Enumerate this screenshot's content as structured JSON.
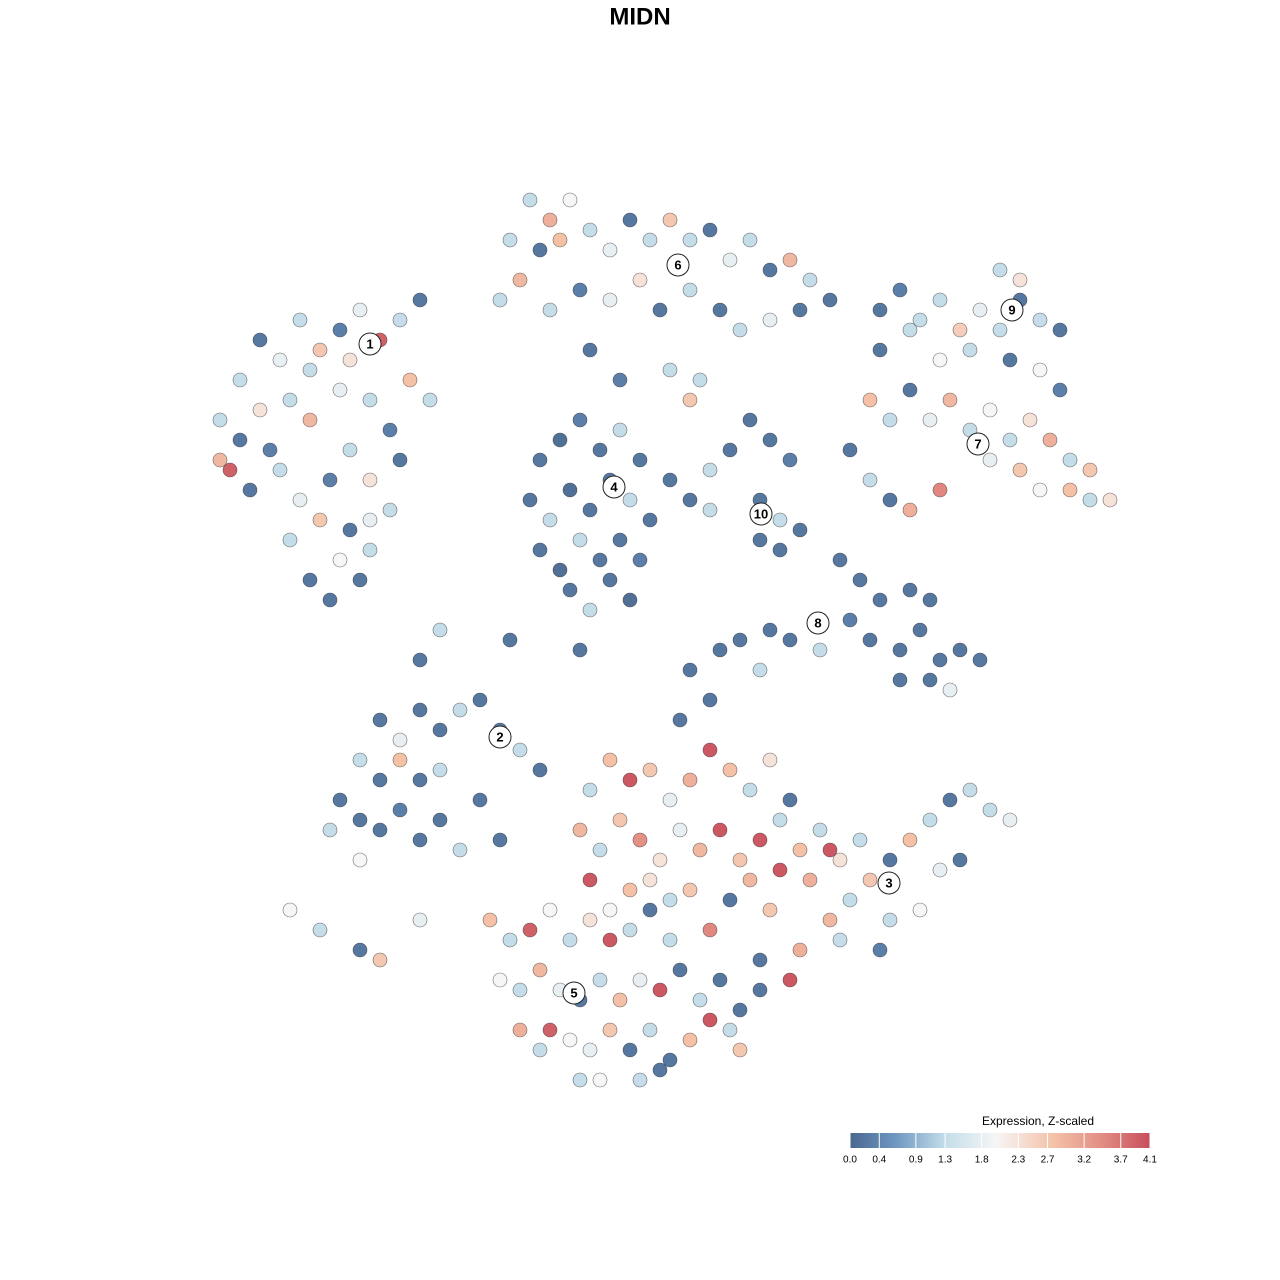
{
  "chart_data": {
    "type": "scatter",
    "title": "MIDN",
    "xlim": [
      -50,
      50
    ],
    "ylim": [
      -50,
      50
    ],
    "points": [
      [
        -40,
        26,
        1.3
      ],
      [
        -38,
        30,
        0.2
      ],
      [
        -36,
        28,
        1.8
      ],
      [
        -34,
        32,
        1.3
      ],
      [
        -32,
        29,
        2.7
      ],
      [
        -30,
        31,
        0.3
      ],
      [
        -28,
        33,
        1.8
      ],
      [
        -26,
        30,
        3.9
      ],
      [
        -24,
        32,
        1.3
      ],
      [
        -22,
        34,
        0.2
      ],
      [
        -42,
        22,
        1.3
      ],
      [
        -40,
        20,
        0.2
      ],
      [
        -38,
        23,
        2.3
      ],
      [
        -35,
        24,
        1.3
      ],
      [
        -33,
        22,
        2.9
      ],
      [
        -30,
        25,
        1.8
      ],
      [
        -27,
        24,
        1.3
      ],
      [
        -25,
        21,
        0.3
      ],
      [
        -23,
        26,
        2.8
      ],
      [
        -21,
        24,
        1.3
      ],
      [
        -42,
        18,
        2.9
      ],
      [
        -39,
        15,
        0.2
      ],
      [
        -36,
        17,
        1.3
      ],
      [
        -34,
        14,
        1.8
      ],
      [
        -31,
        16,
        0.3
      ],
      [
        -29,
        19,
        1.3
      ],
      [
        -27,
        16,
        2.3
      ],
      [
        -24,
        18,
        0.2
      ],
      [
        -41,
        17,
        3.9
      ],
      [
        -35,
        10,
        1.3
      ],
      [
        -32,
        12,
        2.7
      ],
      [
        -29,
        11,
        0.2
      ],
      [
        -27,
        12,
        1.8
      ],
      [
        -25,
        13,
        1.3
      ],
      [
        -33,
        6,
        0.2
      ],
      [
        -30,
        8,
        2.0
      ],
      [
        -27,
        9,
        1.3
      ],
      [
        -31,
        4,
        0.2
      ],
      [
        -28,
        6,
        0.2
      ],
      [
        -37,
        19,
        0.3
      ],
      [
        -29,
        28,
        2.3
      ],
      [
        -33,
        27,
        1.3
      ],
      [
        -11,
        44,
        1.3
      ],
      [
        -9,
        42,
        3.0
      ],
      [
        -7,
        44,
        2.0
      ],
      [
        -13,
        40,
        1.3
      ],
      [
        -10,
        39,
        0.2
      ],
      [
        -8,
        40,
        2.8
      ],
      [
        -5,
        41,
        1.3
      ],
      [
        -3,
        39,
        1.8
      ],
      [
        -1,
        42,
        0.2
      ],
      [
        1,
        40,
        1.3
      ],
      [
        3,
        42,
        2.7
      ],
      [
        5,
        40,
        1.3
      ],
      [
        7,
        41,
        0.2
      ],
      [
        9,
        38,
        1.8
      ],
      [
        11,
        40,
        1.3
      ],
      [
        13,
        37,
        0.2
      ],
      [
        15,
        38,
        2.9
      ],
      [
        17,
        36,
        1.3
      ],
      [
        19,
        34,
        0.2
      ],
      [
        -14,
        34,
        1.3
      ],
      [
        -12,
        36,
        2.9
      ],
      [
        -9,
        33,
        1.3
      ],
      [
        -6,
        35,
        0.3
      ],
      [
        -3,
        34,
        1.8
      ],
      [
        0,
        36,
        2.3
      ],
      [
        2,
        33,
        0.2
      ],
      [
        5,
        35,
        1.3
      ],
      [
        8,
        33,
        0.2
      ],
      [
        10,
        31,
        1.3
      ],
      [
        13,
        32,
        1.8
      ],
      [
        16,
        33,
        0.2
      ],
      [
        6,
        26,
        1.3
      ],
      [
        5,
        24,
        2.7
      ],
      [
        -5,
        29,
        0.2
      ],
      [
        -2,
        26,
        0.3
      ],
      [
        3,
        27,
        1.3
      ],
      [
        -10,
        18,
        0.2
      ],
      [
        -8,
        20,
        0.1
      ],
      [
        -6,
        22,
        0.3
      ],
      [
        -4,
        19,
        0.2
      ],
      [
        -2,
        21,
        1.3
      ],
      [
        0,
        18,
        0.2
      ],
      [
        -11,
        14,
        0.2
      ],
      [
        -9,
        12,
        1.3
      ],
      [
        -7,
        15,
        0.1
      ],
      [
        -5,
        13,
        0.2
      ],
      [
        -3,
        16,
        0.2
      ],
      [
        -1,
        14,
        1.3
      ],
      [
        1,
        12,
        0.2
      ],
      [
        -10,
        9,
        0.2
      ],
      [
        -8,
        7,
        0.1
      ],
      [
        -6,
        10,
        1.3
      ],
      [
        -4,
        8,
        0.2
      ],
      [
        -2,
        10,
        0.2
      ],
      [
        0,
        8,
        0.3
      ],
      [
        -7,
        5,
        0.2
      ],
      [
        -5,
        3,
        1.3
      ],
      [
        -3,
        6,
        0.2
      ],
      [
        -1,
        4,
        0.1
      ],
      [
        3,
        16,
        0.2
      ],
      [
        5,
        14,
        0.2
      ],
      [
        7,
        17,
        1.3
      ],
      [
        9,
        19,
        0.2
      ],
      [
        11,
        22,
        0.2
      ],
      [
        13,
        20,
        0.2
      ],
      [
        15,
        18,
        0.3
      ],
      [
        12,
        14,
        0.2
      ],
      [
        14,
        12,
        1.3
      ],
      [
        12,
        10,
        0.2
      ],
      [
        14,
        9,
        0.2
      ],
      [
        16,
        11,
        0.2
      ],
      [
        7,
        13,
        1.3
      ],
      [
        24,
        33,
        0.2
      ],
      [
        26,
        35,
        0.3
      ],
      [
        28,
        32,
        1.3
      ],
      [
        30,
        34,
        1.3
      ],
      [
        32,
        31,
        2.6
      ],
      [
        34,
        33,
        1.8
      ],
      [
        36,
        31,
        1.3
      ],
      [
        38,
        34,
        0.2
      ],
      [
        40,
        32,
        1.3
      ],
      [
        42,
        31,
        0.2
      ],
      [
        24,
        29,
        0.2
      ],
      [
        27,
        31,
        1.3
      ],
      [
        30,
        28,
        2.0
      ],
      [
        33,
        29,
        1.3
      ],
      [
        37,
        28,
        0.2
      ],
      [
        40,
        27,
        2.0
      ],
      [
        42,
        25,
        0.3
      ],
      [
        36,
        37,
        1.3
      ],
      [
        38,
        36,
        2.3
      ],
      [
        23,
        24,
        2.8
      ],
      [
        25,
        22,
        1.3
      ],
      [
        27,
        25,
        0.2
      ],
      [
        29,
        22,
        1.8
      ],
      [
        31,
        24,
        2.9
      ],
      [
        33,
        21,
        1.3
      ],
      [
        35,
        23,
        2.0
      ],
      [
        37,
        20,
        1.3
      ],
      [
        39,
        22,
        2.3
      ],
      [
        41,
        20,
        3.0
      ],
      [
        43,
        18,
        1.3
      ],
      [
        45,
        17,
        2.7
      ],
      [
        47,
        14,
        2.3
      ],
      [
        35,
        18,
        1.8
      ],
      [
        38,
        17,
        2.7
      ],
      [
        40,
        15,
        2.0
      ],
      [
        43,
        15,
        2.8
      ],
      [
        45,
        14,
        1.3
      ],
      [
        30,
        15,
        3.5
      ],
      [
        27,
        13,
        3.0
      ],
      [
        23,
        16,
        1.3
      ],
      [
        25,
        14,
        0.2
      ],
      [
        21,
        19,
        0.2
      ],
      [
        20,
        8,
        0.2
      ],
      [
        22,
        6,
        0.2
      ],
      [
        24,
        4,
        0.2
      ],
      [
        21,
        2,
        0.3
      ],
      [
        23,
        0,
        0.2
      ],
      [
        26,
        -1,
        0.2
      ],
      [
        28,
        1,
        0.2
      ],
      [
        30,
        -2,
        0.2
      ],
      [
        32,
        -1,
        0.2
      ],
      [
        34,
        -2,
        0.2
      ],
      [
        26,
        -4,
        0.2
      ],
      [
        29,
        -4,
        0.2
      ],
      [
        31,
        -5,
        1.8
      ],
      [
        27,
        5,
        0.2
      ],
      [
        29,
        4,
        0.2
      ],
      [
        18,
        2,
        0.2
      ],
      [
        15,
        0,
        0.2
      ],
      [
        13,
        1,
        0.2
      ],
      [
        10,
        0,
        0.2
      ],
      [
        8,
        -1,
        0.2
      ],
      [
        5,
        -3,
        0.2
      ],
      [
        18,
        -1,
        1.3
      ],
      [
        12,
        -3,
        1.3
      ],
      [
        7,
        -6,
        0.2
      ],
      [
        4,
        -8,
        0.2
      ],
      [
        -26,
        -8,
        0.2
      ],
      [
        -24,
        -10,
        1.8
      ],
      [
        -22,
        -7,
        0.2
      ],
      [
        -20,
        -9,
        0.2
      ],
      [
        -18,
        -7,
        1.3
      ],
      [
        -16,
        -6,
        0.2
      ],
      [
        -14,
        -9,
        0.2
      ],
      [
        -12,
        -11,
        1.3
      ],
      [
        -10,
        -13,
        0.2
      ],
      [
        -28,
        -12,
        1.3
      ],
      [
        -26,
        -14,
        0.2
      ],
      [
        -24,
        -12,
        2.8
      ],
      [
        -22,
        -14,
        0.2
      ],
      [
        -20,
        -13,
        1.3
      ],
      [
        -28,
        -18,
        0.2
      ],
      [
        -30,
        -16,
        0.2
      ],
      [
        -26,
        -19,
        0.2
      ],
      [
        -24,
        -17,
        0.3
      ],
      [
        -22,
        -20,
        0.2
      ],
      [
        -20,
        -18,
        0.2
      ],
      [
        -18,
        -21,
        1.3
      ],
      [
        -31,
        -19,
        1.3
      ],
      [
        -28,
        -22,
        2.0
      ],
      [
        -16,
        -16,
        0.2
      ],
      [
        -14,
        -20,
        0.2
      ],
      [
        -22,
        -2,
        0.2
      ],
      [
        -35,
        -27,
        2.0
      ],
      [
        -32,
        -29,
        1.3
      ],
      [
        -28,
        -31,
        0.2
      ],
      [
        -26,
        -32,
        2.7
      ],
      [
        -22,
        -28,
        1.8
      ],
      [
        -5,
        -15,
        1.3
      ],
      [
        -3,
        -12,
        2.8
      ],
      [
        -1,
        -14,
        4.0
      ],
      [
        1,
        -13,
        2.7
      ],
      [
        3,
        -16,
        1.8
      ],
      [
        5,
        -14,
        3.0
      ],
      [
        7,
        -11,
        4.0
      ],
      [
        9,
        -13,
        2.8
      ],
      [
        11,
        -15,
        1.3
      ],
      [
        13,
        -12,
        2.3
      ],
      [
        15,
        -16,
        0.2
      ],
      [
        -6,
        -19,
        2.9
      ],
      [
        -4,
        -21,
        1.3
      ],
      [
        -2,
        -18,
        2.7
      ],
      [
        0,
        -20,
        3.4
      ],
      [
        2,
        -22,
        2.3
      ],
      [
        4,
        -19,
        1.8
      ],
      [
        6,
        -21,
        2.9
      ],
      [
        8,
        -19,
        4.0
      ],
      [
        10,
        -22,
        2.7
      ],
      [
        12,
        -20,
        4.0
      ],
      [
        14,
        -18,
        1.3
      ],
      [
        16,
        -21,
        2.8
      ],
      [
        18,
        -19,
        1.3
      ],
      [
        20,
        -22,
        2.3
      ],
      [
        22,
        -20,
        1.3
      ],
      [
        -5,
        -24,
        4.0
      ],
      [
        -3,
        -27,
        2.0
      ],
      [
        -1,
        -25,
        2.8
      ],
      [
        1,
        -24,
        2.3
      ],
      [
        3,
        -26,
        1.3
      ],
      [
        5,
        -25,
        2.7
      ],
      [
        9,
        -26,
        0.2
      ],
      [
        11,
        -24,
        2.9
      ],
      [
        14,
        -23,
        4.0
      ],
      [
        17,
        -24,
        3.0
      ],
      [
        19,
        -21,
        4.0
      ],
      [
        21,
        -26,
        1.3
      ],
      [
        23,
        -24,
        2.7
      ],
      [
        25,
        -22,
        0.2
      ],
      [
        27,
        -20,
        2.8
      ],
      [
        29,
        -18,
        1.3
      ],
      [
        31,
        -16,
        0.2
      ],
      [
        33,
        -15,
        1.3
      ],
      [
        35,
        -17,
        1.3
      ],
      [
        37,
        -18,
        1.8
      ],
      [
        30,
        -23,
        1.8
      ],
      [
        25,
        -28,
        1.3
      ],
      [
        28,
        -27,
        2.0
      ],
      [
        32,
        -22,
        0.2
      ],
      [
        24,
        -31,
        0.3
      ],
      [
        19,
        -28,
        2.9
      ],
      [
        16,
        -31,
        3.0
      ],
      [
        13,
        -27,
        2.7
      ],
      [
        15,
        -34,
        4.0
      ],
      [
        12,
        -32,
        0.2
      ],
      [
        7,
        -29,
        3.5
      ],
      [
        20,
        -30,
        1.3
      ],
      [
        -15,
        -28,
        2.8
      ],
      [
        -13,
        -30,
        1.3
      ],
      [
        -11,
        -29,
        3.9
      ],
      [
        -9,
        -27,
        2.0
      ],
      [
        -7,
        -30,
        1.3
      ],
      [
        -5,
        -28,
        2.3
      ],
      [
        -3,
        -30,
        4.0
      ],
      [
        -1,
        -29,
        1.3
      ],
      [
        1,
        -27,
        0.2
      ],
      [
        3,
        -30,
        1.3
      ],
      [
        -14,
        -34,
        2.0
      ],
      [
        -12,
        -35,
        1.3
      ],
      [
        -10,
        -33,
        2.9
      ],
      [
        -8,
        -35,
        1.8
      ],
      [
        -6,
        -36,
        0.2
      ],
      [
        -4,
        -34,
        1.3
      ],
      [
        -2,
        -36,
        2.8
      ],
      [
        0,
        -34,
        1.8
      ],
      [
        2,
        -35,
        4.0
      ],
      [
        4,
        -33,
        0.2
      ],
      [
        6,
        -36,
        1.3
      ],
      [
        8,
        -34,
        0.2
      ],
      [
        10,
        -37,
        0.2
      ],
      [
        12,
        -35,
        0.2
      ],
      [
        -12,
        -39,
        3.0
      ],
      [
        -10,
        -41,
        1.3
      ],
      [
        -9,
        -39,
        3.9
      ],
      [
        -7,
        -40,
        2.0
      ],
      [
        -5,
        -41,
        1.8
      ],
      [
        -3,
        -39,
        2.7
      ],
      [
        -1,
        -41,
        0.2
      ],
      [
        1,
        -39,
        1.3
      ],
      [
        3,
        -42,
        0.2
      ],
      [
        5,
        -40,
        2.8
      ],
      [
        7,
        -38,
        4.0
      ],
      [
        9,
        -39,
        1.3
      ],
      [
        10,
        -41,
        2.7
      ],
      [
        -4,
        -44,
        2.0
      ],
      [
        0,
        -44,
        1.3
      ],
      [
        2,
        -43,
        0.2
      ],
      [
        -6,
        -44,
        1.3
      ],
      [
        -20,
        1,
        1.3
      ],
      [
        -13,
        0,
        0.2
      ],
      [
        -6,
        -1,
        0.2
      ]
    ],
    "clusters": [
      {
        "label": "1",
        "x": -27,
        "y": 29.6
      },
      {
        "label": "6",
        "x": 3.8,
        "y": 37.5
      },
      {
        "label": "9",
        "x": 37.2,
        "y": 33
      },
      {
        "label": "4",
        "x": -2.6,
        "y": 15.3
      },
      {
        "label": "7",
        "x": 33.8,
        "y": 19.6
      },
      {
        "label": "10",
        "x": 12.1,
        "y": 12.6
      },
      {
        "label": "8",
        "x": 17.8,
        "y": 1.7
      },
      {
        "label": "2",
        "x": -14,
        "y": -9.7
      },
      {
        "label": "3",
        "x": 24.9,
        "y": -24.3
      },
      {
        "label": "5",
        "x": -6.6,
        "y": -35.3
      }
    ],
    "colorbar": {
      "title": "Expression, Z-scaled",
      "clim": [
        0,
        4.1
      ],
      "ticks": [
        {
          "value": 0,
          "label": "0.0"
        },
        0.4,
        0.9,
        1.3,
        1.8,
        2.3,
        2.7,
        3.2,
        3.7,
        4.1
      ],
      "stops": [
        [
          0,
          "#4a6890"
        ],
        [
          0.6,
          "#6c95c0"
        ],
        [
          1.3,
          "#c4dde9"
        ],
        [
          2.0,
          "#f6f6f6"
        ],
        [
          2.8,
          "#f4c0a6"
        ],
        [
          3.5,
          "#e08880"
        ],
        [
          4.1,
          "#c74e5c"
        ]
      ]
    }
  }
}
